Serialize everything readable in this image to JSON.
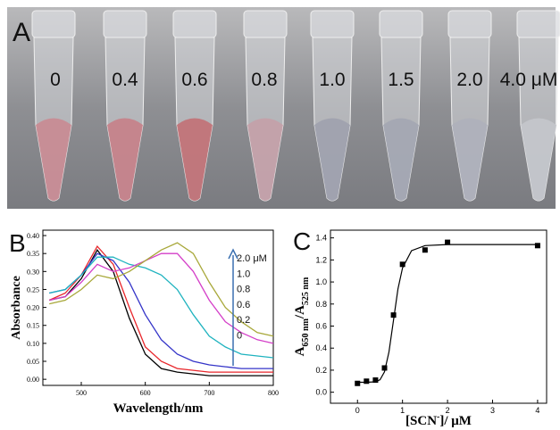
{
  "panel_a": {
    "label": "A",
    "concentrations": [
      "0",
      "0.4",
      "0.6",
      "0.8",
      "1.0",
      "1.5",
      "2.0",
      "4.0 μM"
    ]
  },
  "chart_data": [
    {
      "type": "line",
      "panel": "B",
      "y_label": "Absorbance",
      "x_label": "Wavelength/nm",
      "x": [
        450,
        475,
        500,
        525,
        550,
        575,
        600,
        625,
        650,
        675,
        700,
        725,
        750,
        775,
        800
      ],
      "xlim": [
        440,
        800
      ],
      "ylim": [
        -0.017,
        0.415
      ],
      "xticks": [
        500,
        600,
        700,
        800
      ],
      "yticks": [
        {
          "value": 0,
          "label": "0.00"
        },
        {
          "value": 0.05,
          "label": "0.05"
        },
        {
          "value": 0.1,
          "label": "0.10"
        },
        {
          "value": 0.15,
          "label": "0.15"
        },
        {
          "value": 0.2,
          "label": "0.20"
        },
        {
          "value": 0.25,
          "label": "0.25"
        },
        {
          "value": 0.3,
          "label": "0.30"
        },
        {
          "value": 0.35,
          "label": "0.35"
        },
        {
          "value": 0.4,
          "label": "0.40"
        }
      ],
      "series": [
        {
          "name": "0",
          "color": "#000000",
          "values": [
            0.22,
            0.23,
            0.28,
            0.36,
            0.3,
            0.17,
            0.07,
            0.03,
            0.02,
            0.015,
            0.01,
            0.01,
            0.01,
            0.01,
            0.01
          ]
        },
        {
          "name": "0.2",
          "color": "#e8262b",
          "values": [
            0.22,
            0.24,
            0.29,
            0.37,
            0.32,
            0.2,
            0.09,
            0.05,
            0.03,
            0.025,
            0.02,
            0.02,
            0.02,
            0.02,
            0.02
          ]
        },
        {
          "name": "0.6",
          "color": "#3434c8",
          "values": [
            0.24,
            0.25,
            0.29,
            0.35,
            0.33,
            0.27,
            0.18,
            0.11,
            0.07,
            0.05,
            0.04,
            0.035,
            0.03,
            0.03,
            0.03
          ]
        },
        {
          "name": "0.8",
          "color": "#1fb3bf",
          "values": [
            0.24,
            0.25,
            0.29,
            0.34,
            0.34,
            0.32,
            0.31,
            0.29,
            0.25,
            0.18,
            0.12,
            0.09,
            0.07,
            0.065,
            0.06
          ]
        },
        {
          "name": "1.0",
          "color": "#d43fc8",
          "values": [
            0.22,
            0.23,
            0.27,
            0.32,
            0.3,
            0.31,
            0.33,
            0.35,
            0.35,
            0.3,
            0.22,
            0.16,
            0.13,
            0.11,
            0.1
          ]
        },
        {
          "name": "2.0 μM",
          "color": "#a8a83a",
          "values": [
            0.21,
            0.22,
            0.25,
            0.29,
            0.28,
            0.3,
            0.33,
            0.36,
            0.38,
            0.35,
            0.27,
            0.2,
            0.16,
            0.13,
            0.12
          ]
        }
      ]
    },
    {
      "type": "scatter",
      "panel": "C",
      "y_label": {
        "main": "A",
        "sub1": "650 nm",
        "sep": "/A",
        "sub2": "525 nm"
      },
      "x_label": {
        "pre": "[SCN",
        "sup": "-",
        "post": "]/ μM"
      },
      "xlim": [
        -0.6,
        4.2
      ],
      "ylim": [
        -0.1,
        1.47
      ],
      "xticks": [
        0,
        1,
        2,
        3,
        4
      ],
      "yticks": [
        {
          "value": 0,
          "label": "0.0"
        },
        0.2,
        0.4,
        0.6,
        0.8,
        {
          "value": 1,
          "label": "1.0"
        },
        1.2,
        1.4
      ],
      "series": [
        {
          "color": "#000000",
          "marker": "square",
          "x": [
            0,
            0.2,
            0.4,
            0.6,
            0.8,
            1.0,
            1.5,
            2.0,
            4.0
          ],
          "values": [
            0.08,
            0.1,
            0.11,
            0.22,
            0.7,
            1.16,
            1.29,
            1.36,
            1.33
          ]
        },
        {
          "color": "#000000",
          "marker": "none",
          "x": [
            0,
            0.2,
            0.4,
            0.5,
            0.6,
            0.7,
            0.8,
            0.9,
            1.0,
            1.2,
            1.5,
            2,
            3,
            4
          ],
          "values": [
            0.09,
            0.09,
            0.094,
            0.113,
            0.185,
            0.365,
            0.654,
            0.938,
            1.128,
            1.284,
            1.33,
            1.34,
            1.34,
            1.34
          ]
        }
      ]
    }
  ]
}
